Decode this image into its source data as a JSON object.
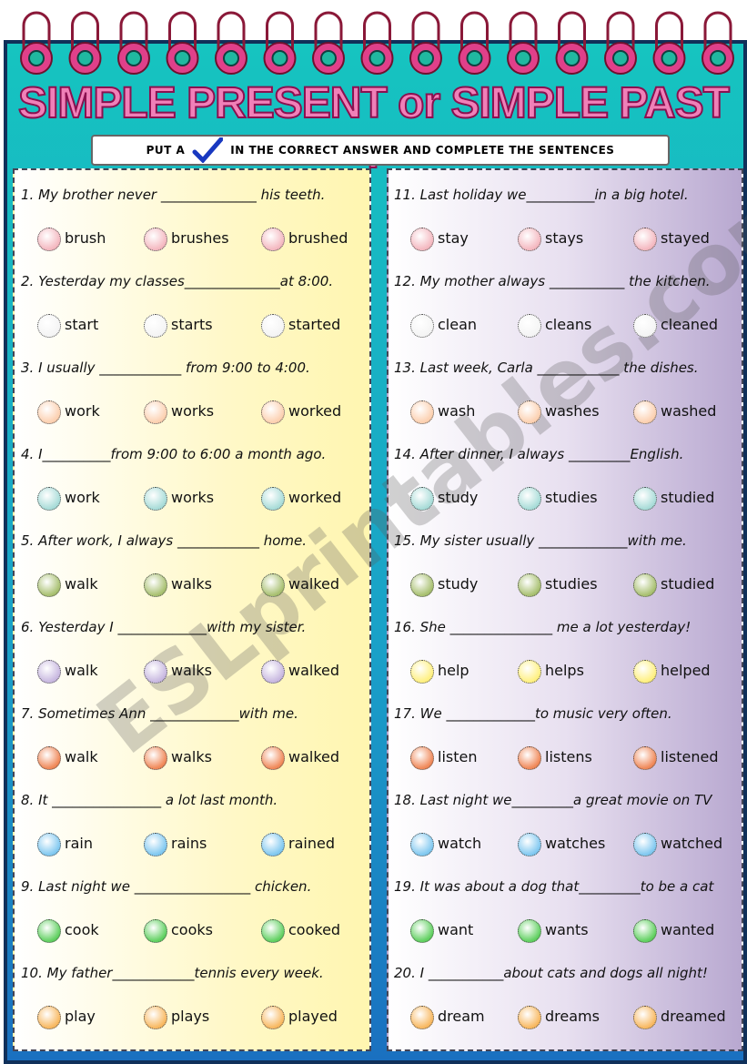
{
  "title": "SIMPLE PRESENT or SIMPLE PAST ?",
  "instruction": {
    "before": "PUT A",
    "after": "IN THE CORRECT ANSWER AND COMPLETE THE SENTENCES"
  },
  "watermark": "ESLprintables.com",
  "questions": [
    {
      "text": "1. My brother never ______________ his teeth.",
      "options": [
        "brush",
        "brushes",
        "brushed"
      ]
    },
    {
      "text": "2. Yesterday my classes______________at 8:00.",
      "options": [
        "start",
        "starts",
        "started"
      ]
    },
    {
      "text": "3. I usually ____________ from 9:00 to 4:00.",
      "options": [
        "work",
        "works",
        "worked"
      ]
    },
    {
      "text": "4. I__________from 9:00 to 6:00 a month ago.",
      "options": [
        "work",
        "works",
        "worked"
      ]
    },
    {
      "text": "5. After work, I always ____________ home.",
      "options": [
        "walk",
        "walks",
        "walked"
      ]
    },
    {
      "text": "6. Yesterday I _____________with my sister.",
      "options": [
        "walk",
        "walks",
        "walked"
      ]
    },
    {
      "text": "7. Sometimes Ann _____________with me.",
      "options": [
        "walk",
        "walks",
        "walked"
      ]
    },
    {
      "text": "8. It ________________ a lot last month.",
      "options": [
        "rain",
        "rains",
        "rained"
      ]
    },
    {
      "text": "9. Last night we _________________ chicken.",
      "options": [
        "cook",
        "cooks",
        "cooked"
      ]
    },
    {
      "text": "10. My father____________tennis every week.",
      "options": [
        "play",
        "plays",
        "played"
      ]
    },
    {
      "text": "11. Last holiday we__________in a big hotel.",
      "options": [
        "stay",
        "stays",
        "stayed"
      ]
    },
    {
      "text": "12. My mother always ___________ the kitchen.",
      "options": [
        "clean",
        "cleans",
        "cleaned"
      ]
    },
    {
      "text": "13. Last week, Carla ____________ the dishes.",
      "options": [
        "wash",
        "washes",
        "washed"
      ]
    },
    {
      "text": "14. After dinner, I always _________English.",
      "options": [
        "study",
        "studies",
        "studied"
      ]
    },
    {
      "text": "15. My sister usually _____________with me.",
      "options": [
        "study",
        "studies",
        "studied"
      ]
    },
    {
      "text": "16. She _______________ me a lot yesterday!",
      "options": [
        "help",
        "helps",
        "helped"
      ]
    },
    {
      "text": "17. We _____________to music very often.",
      "options": [
        "listen",
        "listens",
        "listened"
      ]
    },
    {
      "text": "18. Last night we_________a great movie on TV",
      "options": [
        "watch",
        "watches",
        "watched"
      ]
    },
    {
      "text": "19. It was about a dog that_________to be a cat",
      "options": [
        "want",
        "wants",
        "wanted"
      ]
    },
    {
      "text": "20. I ___________about cats and dogs all night!",
      "options": [
        "dream",
        "dreams",
        "dreamed"
      ]
    }
  ]
}
